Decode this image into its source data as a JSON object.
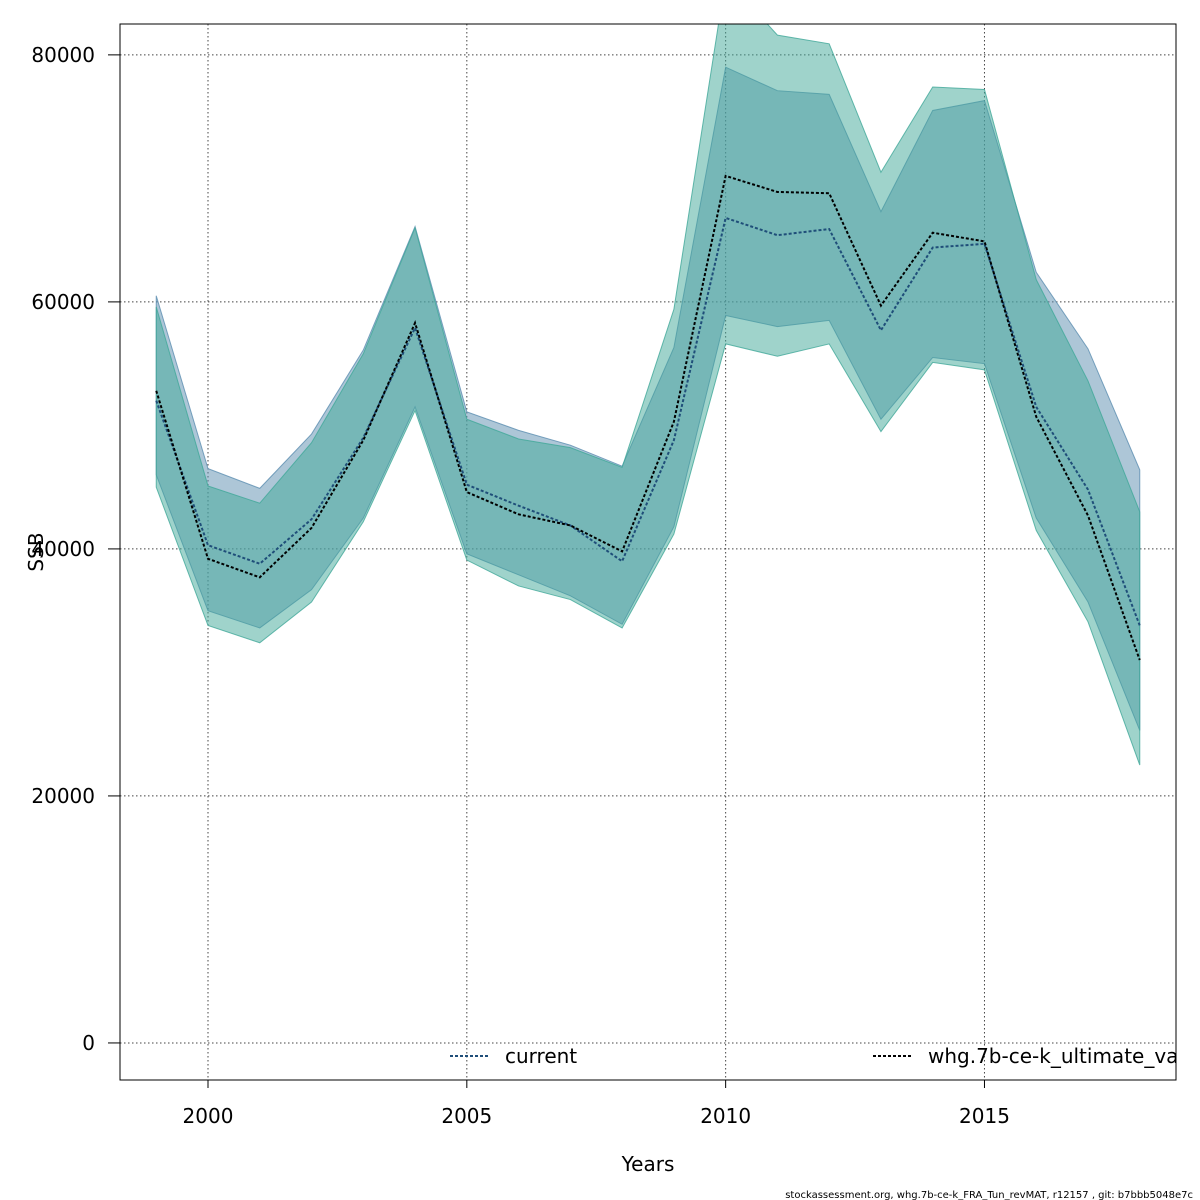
{
  "chart_data": {
    "type": "line",
    "xlabel": "Years",
    "ylabel": "SSB",
    "xlim": [
      1998.3,
      2018.7
    ],
    "ylim": [
      -3000,
      82500
    ],
    "x_ticks": [
      2000,
      2005,
      2010,
      2015
    ],
    "y_ticks": [
      0,
      20000,
      40000,
      60000,
      80000
    ],
    "grid": true,
    "legend_position": "bottom",
    "x": [
      1999,
      2000,
      2001,
      2002,
      2003,
      2004,
      2005,
      2006,
      2007,
      2008,
      2009,
      2010,
      2011,
      2012,
      2013,
      2014,
      2015,
      2016,
      2017,
      2018
    ],
    "series": [
      {
        "name": "current",
        "color": "#1f4e79",
        "band_color": "#5b8db0",
        "values": [
          52000,
          40300,
          38800,
          42400,
          49000,
          57900,
          45200,
          43500,
          41900,
          39000,
          48800,
          66800,
          65400,
          65900,
          57700,
          64400,
          64700,
          51500,
          44800,
          33800
        ],
        "lower": [
          46000,
          35000,
          33600,
          36700,
          42500,
          51500,
          39600,
          37900,
          36200,
          33900,
          41800,
          58900,
          58000,
          58500,
          50500,
          55500,
          55000,
          42500,
          35700,
          25300
        ],
        "upper": [
          60500,
          46500,
          44900,
          49300,
          56100,
          66100,
          51100,
          49600,
          48400,
          46700,
          56300,
          79000,
          77100,
          76800,
          67300,
          75500,
          76300,
          62400,
          56200,
          46400
        ]
      },
      {
        "name": "whg.7b-ce-k_ultimate_va",
        "color": "#000000",
        "band_color": "#40a898",
        "values": [
          52800,
          39200,
          37700,
          41700,
          48800,
          58300,
          44600,
          42800,
          41900,
          39800,
          50300,
          70200,
          68900,
          68800,
          59700,
          65600,
          64900,
          50700,
          42700,
          31000
        ],
        "lower": [
          45000,
          33800,
          32400,
          35700,
          42200,
          51200,
          39100,
          37000,
          35900,
          33600,
          41200,
          56600,
          55600,
          56600,
          49500,
          55100,
          54500,
          41500,
          34100,
          22500
        ],
        "upper": [
          59600,
          45100,
          43700,
          48600,
          55800,
          66000,
          50500,
          48900,
          48200,
          46600,
          59400,
          86200,
          81600,
          80900,
          70500,
          77400,
          77200,
          61800,
          53600,
          43000
        ]
      }
    ]
  },
  "footer": "stockassessment.org, whg.7b-ce-k_FRA_Tun_revMAT, r12157 , git: b7bbb5048e7c"
}
